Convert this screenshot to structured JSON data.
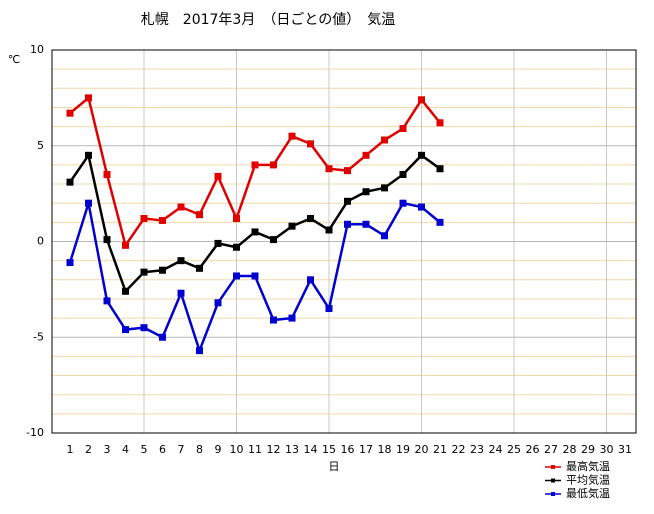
{
  "chart_data": {
    "type": "line",
    "title": "札幌　2017年3月　（日ごとの値）　気温",
    "y_label": "℃",
    "x_label": "日",
    "categories": [
      "1",
      "2",
      "3",
      "4",
      "5",
      "6",
      "7",
      "8",
      "9",
      "10",
      "11",
      "12",
      "13",
      "14",
      "15",
      "16",
      "17",
      "18",
      "19",
      "20",
      "21",
      "22",
      "23",
      "24",
      "25",
      "26",
      "27",
      "28",
      "29",
      "30",
      "31"
    ],
    "series": [
      {
        "name": "最高気温",
        "color": "#e00000",
        "values": [
          6.7,
          7.5,
          3.5,
          -0.2,
          1.2,
          1.1,
          1.8,
          1.4,
          3.4,
          1.2,
          4.0,
          4.0,
          5.5,
          5.1,
          3.8,
          3.7,
          4.5,
          5.3,
          5.9,
          7.4,
          6.2,
          null,
          null,
          null,
          null,
          null,
          null,
          null,
          null,
          null,
          null
        ]
      },
      {
        "name": "平均気温",
        "color": "#000000",
        "values": [
          3.1,
          4.5,
          0.1,
          -2.6,
          -1.6,
          -1.5,
          -1.0,
          -1.4,
          -0.1,
          -0.3,
          0.5,
          0.1,
          0.8,
          1.2,
          0.6,
          2.1,
          2.6,
          2.8,
          3.5,
          4.5,
          3.8,
          null,
          null,
          null,
          null,
          null,
          null,
          null,
          null,
          null,
          null
        ]
      },
      {
        "name": "最低気温",
        "color": "#0000d0",
        "values": [
          -1.1,
          2.0,
          -3.1,
          -4.6,
          -4.5,
          -5.0,
          -2.7,
          -5.7,
          -3.2,
          -1.8,
          -1.8,
          -4.1,
          -4.0,
          -2.0,
          -3.5,
          0.9,
          0.9,
          0.3,
          2.0,
          1.8,
          1.0,
          null,
          null,
          null,
          null,
          null,
          null,
          null,
          null,
          null,
          null
        ]
      }
    ],
    "ylim": [
      -10,
      10
    ],
    "yticks": [
      -10,
      -5,
      0,
      5,
      10
    ],
    "yminor_ticks": [
      -9,
      -8,
      -7,
      -6,
      -4,
      -3,
      -2,
      -1,
      1,
      2,
      3,
      4,
      6,
      7,
      8,
      9
    ],
    "xgrid_every": 5,
    "grid": true,
    "legend": "bottom-right"
  }
}
